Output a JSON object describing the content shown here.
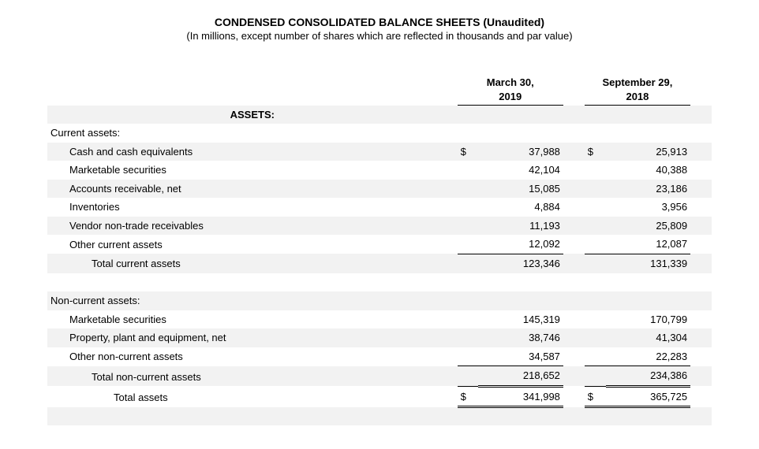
{
  "title": "CONDENSED CONSOLIDATED BALANCE SHEETS (Unaudited)",
  "subtitle": "(In millions, except number of shares which are reflected in thousands and par value)",
  "columns": {
    "period1_line1": "March 30,",
    "period1_line2": "2019",
    "period2_line1": "September 29,",
    "period2_line2": "2018"
  },
  "assets_header": "ASSETS:",
  "current_assets_header": "Current assets:",
  "noncurrent_assets_header": "Non-current assets:",
  "cur_sym": "$",
  "rows": {
    "cash": {
      "label": "Cash and cash equivalents",
      "v1": "37,988",
      "v2": "25,913"
    },
    "msec_cur": {
      "label": "Marketable securities",
      "v1": "42,104",
      "v2": "40,388"
    },
    "ar": {
      "label": "Accounts receivable, net",
      "v1": "15,085",
      "v2": "23,186"
    },
    "inv": {
      "label": "Inventories",
      "v1": "4,884",
      "v2": "3,956"
    },
    "vendor": {
      "label": "Vendor non-trade receivables",
      "v1": "11,193",
      "v2": "25,809"
    },
    "other_cur": {
      "label": "Other current assets",
      "v1": "12,092",
      "v2": "12,087"
    },
    "tot_cur": {
      "label": "Total current assets",
      "v1": "123,346",
      "v2": "131,339"
    },
    "msec_nc": {
      "label": "Marketable securities",
      "v1": "145,319",
      "v2": "170,799"
    },
    "ppe": {
      "label": "Property, plant and equipment, net",
      "v1": "38,746",
      "v2": "41,304"
    },
    "other_nc": {
      "label": "Other non-current assets",
      "v1": "34,587",
      "v2": "22,283"
    },
    "tot_nc": {
      "label": "Total non-current assets",
      "v1": "218,652",
      "v2": "234,386"
    },
    "tot_assets": {
      "label": "Total assets",
      "v1": "341,998",
      "v2": "365,725"
    }
  }
}
